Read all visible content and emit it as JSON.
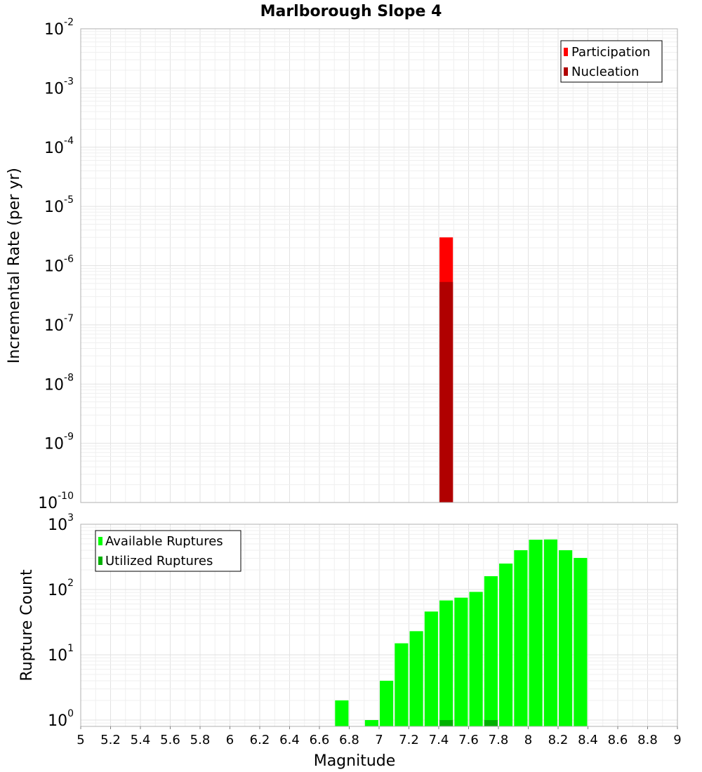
{
  "chart_data": [
    {
      "type": "bar",
      "title": "Marlborough Slope 4",
      "xlabel": "",
      "ylabel": "Incremental Rate (per yr)",
      "yscale": "log",
      "xlim": [
        5,
        9
      ],
      "ylim": [
        1e-10,
        0.01
      ],
      "y_ticks": [
        {
          "base": "10",
          "exp": "-2",
          "value": 0.01
        },
        {
          "base": "10",
          "exp": "-3",
          "value": 0.001
        },
        {
          "base": "10",
          "exp": "-4",
          "value": 0.0001
        },
        {
          "base": "10",
          "exp": "-5",
          "value": 1e-05
        },
        {
          "base": "10",
          "exp": "-6",
          "value": 1e-06
        },
        {
          "base": "10",
          "exp": "-7",
          "value": 1e-07
        },
        {
          "base": "10",
          "exp": "-8",
          "value": 1e-08
        },
        {
          "base": "10",
          "exp": "-9",
          "value": 1e-09
        },
        {
          "base": "10",
          "exp": "-10",
          "value": 1e-10
        }
      ],
      "bar_width": 0.09,
      "legend_position": "top-right",
      "series": [
        {
          "name": "Participation",
          "color": "#ff0000",
          "x": [
            7.45
          ],
          "values": [
            3e-06
          ]
        },
        {
          "name": "Nucleation",
          "color": "#b00000",
          "x": [
            7.45
          ],
          "values": [
            5.3e-07
          ]
        }
      ]
    },
    {
      "type": "bar",
      "title": "",
      "xlabel": "Magnitude",
      "ylabel": "Rupture Count",
      "yscale": "log",
      "xlim": [
        5,
        9
      ],
      "ylim": [
        0.8,
        1000
      ],
      "x_ticks": [
        "5",
        "5.2",
        "5.4",
        "5.6",
        "5.8",
        "6",
        "6.2",
        "6.4",
        "6.6",
        "6.8",
        "7",
        "7.2",
        "7.4",
        "7.6",
        "7.8",
        "8",
        "8.2",
        "8.4",
        "8.6",
        "8.8",
        "9"
      ],
      "y_ticks": [
        {
          "base": "10",
          "exp": "3",
          "value": 1000
        },
        {
          "base": "10",
          "exp": "2",
          "value": 100
        },
        {
          "base": "10",
          "exp": "1",
          "value": 10
        },
        {
          "base": "10",
          "exp": "0",
          "value": 1
        }
      ],
      "bar_width": 0.09,
      "legend_position": "top-left",
      "series": [
        {
          "name": "Available Ruptures",
          "color": "#00ff00",
          "x": [
            6.75,
            6.95,
            7.05,
            7.15,
            7.25,
            7.35,
            7.45,
            7.55,
            7.65,
            7.75,
            7.85,
            7.95,
            8.05,
            8.15,
            8.25,
            8.35
          ],
          "values": [
            2,
            1,
            4,
            15,
            23,
            46,
            68,
            75,
            92,
            160,
            250,
            400,
            580,
            585,
            400,
            305
          ]
        },
        {
          "name": "Utilized Ruptures",
          "color": "#00b000",
          "x": [
            7.45,
            7.75
          ],
          "values": [
            1,
            1
          ]
        }
      ]
    }
  ]
}
